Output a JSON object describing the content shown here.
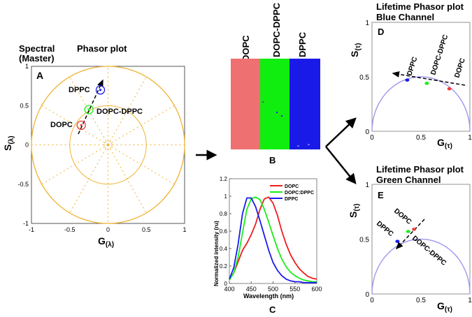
{
  "colors": {
    "orange": "#f0b232",
    "purple": "#b7b2ee",
    "dopc": "#f03a3a",
    "dopc_dppc": "#19f019",
    "dppc": "#1010ee",
    "panel_b_red": "#ef7070",
    "panel_b_green": "#10ee10",
    "panel_b_blue": "#1a1ae8"
  },
  "panel_a": {
    "letter": "A",
    "title_line1": "Spectral",
    "title_word2": "Phasor plot",
    "title_line2": "(Master)",
    "ylabel": "S",
    "ylabel_sub": "(λ)",
    "xlabel": "G",
    "xlabel_sub": "(λ)",
    "xticks": [
      "-1",
      "-0.5",
      "0",
      "0.5",
      "1"
    ],
    "yticks": [
      "1",
      "0.5",
      "0",
      "-0.5",
      "-1"
    ],
    "xlim": [
      -1,
      1
    ],
    "ylim": [
      -1,
      1
    ],
    "circle_radii": [
      1,
      0.5,
      0.05
    ],
    "points": [
      {
        "label": "DPPC",
        "g": -0.1,
        "s": 0.7,
        "color": "#1a1ae8"
      },
      {
        "label": "DOPC-DPPC",
        "g": -0.25,
        "s": 0.45,
        "color": "#19f019"
      },
      {
        "label": "DOPC",
        "g": -0.35,
        "s": 0.25,
        "color": "#f03a3a"
      }
    ]
  },
  "panel_b": {
    "letter": "B",
    "columns": [
      "DOPC",
      "DOPC-DPPC",
      "DPPC"
    ]
  },
  "panel_c": {
    "letter": "C",
    "chart_data": {
      "type": "line",
      "xlabel": "Wavelength (nm)",
      "ylabel": "Normalized intensity (ru)",
      "xlim": [
        400,
        600
      ],
      "ylim": [
        0,
        1.2
      ],
      "xticks": [
        "400",
        "450",
        "500",
        "550",
        "600"
      ],
      "yticks": [
        "0",
        "0.2",
        "0.4",
        "0.6",
        "0.8",
        "1",
        "1.2"
      ],
      "x": [
        400,
        410,
        420,
        430,
        440,
        450,
        460,
        470,
        480,
        490,
        500,
        510,
        520,
        530,
        540,
        550,
        560,
        570,
        580,
        590,
        600
      ],
      "series": [
        {
          "name": "DOPC",
          "color": "#ee1c1c",
          "values": [
            0.05,
            0.12,
            0.25,
            0.38,
            0.46,
            0.56,
            0.68,
            0.85,
            0.97,
            0.99,
            0.92,
            0.78,
            0.6,
            0.45,
            0.33,
            0.24,
            0.17,
            0.12,
            0.08,
            0.06,
            0.05
          ]
        },
        {
          "name": "DOPC:DPPC",
          "color": "#1aee1a",
          "values": [
            0.04,
            0.12,
            0.3,
            0.58,
            0.85,
            0.97,
            0.99,
            0.96,
            0.85,
            0.7,
            0.55,
            0.4,
            0.28,
            0.19,
            0.13,
            0.09,
            0.06,
            0.04,
            0.03,
            0.02,
            0.02
          ]
        },
        {
          "name": "DPPC",
          "color": "#1a1aee",
          "values": [
            0.05,
            0.18,
            0.45,
            0.8,
            0.98,
            0.98,
            0.88,
            0.72,
            0.55,
            0.38,
            0.24,
            0.15,
            0.09,
            0.05,
            0.03,
            0.02,
            0.02,
            0.01,
            0.01,
            0.01,
            0.01
          ]
        }
      ]
    }
  },
  "panel_d": {
    "letter": "D",
    "title_line1": "Lifetime Phasor plot",
    "title_line2": "Blue Channel",
    "ylabel": "S",
    "ylabel_sub": "(τ)",
    "xlabel": "G",
    "xlabel_sub": "(τ)",
    "xticks": [
      "0",
      "0.5",
      "1"
    ],
    "yticks": [
      "1",
      "0.5",
      "0"
    ],
    "xlim": [
      0,
      1
    ],
    "ylim": [
      0,
      1
    ],
    "points": [
      {
        "label": "DPPC",
        "g": 0.36,
        "s": 0.47,
        "color": "#1a1ae8"
      },
      {
        "label": "DOPC-DPPC",
        "g": 0.56,
        "s": 0.44,
        "color": "#19f019"
      },
      {
        "label": "DOPC",
        "g": 0.79,
        "s": 0.39,
        "color": "#f03a3a"
      }
    ]
  },
  "panel_e": {
    "letter": "E",
    "title_line1": "Lifetime Phasor plot",
    "title_line2": "Green Channel",
    "ylabel": "S",
    "ylabel_sub": "(τ)",
    "xlabel": "G",
    "xlabel_sub": "(τ)",
    "xticks": [
      "0",
      "0.5",
      "1"
    ],
    "yticks": [
      "1",
      "0.5",
      "0"
    ],
    "xlim": [
      0,
      1
    ],
    "ylim": [
      0,
      1
    ],
    "points": [
      {
        "label": "DPPC",
        "g": 0.26,
        "s": 0.48,
        "color": "#1a1ae8"
      },
      {
        "label": "DOPC-DPPC",
        "g": 0.37,
        "s": 0.57,
        "color": "#19f019"
      },
      {
        "label": "DOPC",
        "g": 0.43,
        "s": 0.59,
        "color": "#f03a3a"
      }
    ]
  }
}
